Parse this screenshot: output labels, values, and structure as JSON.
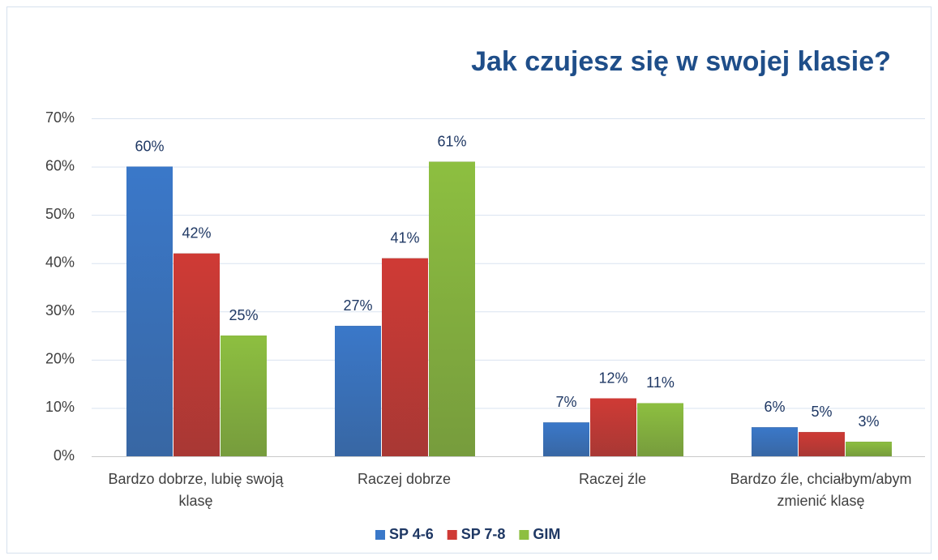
{
  "chart_data": {
    "type": "bar",
    "title": "Jak czujesz się w swojej klasie?",
    "categories": [
      "Bardzo dobrze, lubię swoją klasę",
      "Raczej dobrze",
      "Raczej źle",
      "Bardzo źle, chciałbym/abym zmienić klasę"
    ],
    "series": [
      {
        "name": "SP 4-6",
        "color": "#3a78c9",
        "values": [
          60,
          27,
          7,
          6
        ],
        "value_labels": [
          "60%",
          "27%",
          "7%",
          "6%"
        ]
      },
      {
        "name": "SP 7-8",
        "color": "#cf3a35",
        "values": [
          42,
          41,
          12,
          5
        ],
        "value_labels": [
          "42%",
          "41%",
          "12%",
          "5%"
        ]
      },
      {
        "name": "GIM",
        "color": "#8dbf40",
        "values": [
          25,
          61,
          11,
          3
        ],
        "value_labels": [
          "25%",
          "61%",
          "11%",
          "3%"
        ]
      }
    ],
    "ylim": [
      0,
      70
    ],
    "yticks": [
      {
        "value": 0,
        "label": "0%"
      },
      {
        "value": 10,
        "label": "10%"
      },
      {
        "value": 20,
        "label": "20%"
      },
      {
        "value": 30,
        "label": "30%"
      },
      {
        "value": 40,
        "label": "40%"
      },
      {
        "value": 50,
        "label": "50%"
      },
      {
        "value": 60,
        "label": "60%"
      },
      {
        "value": 70,
        "label": "70%"
      }
    ],
    "grid": true,
    "legend": "bottom"
  }
}
